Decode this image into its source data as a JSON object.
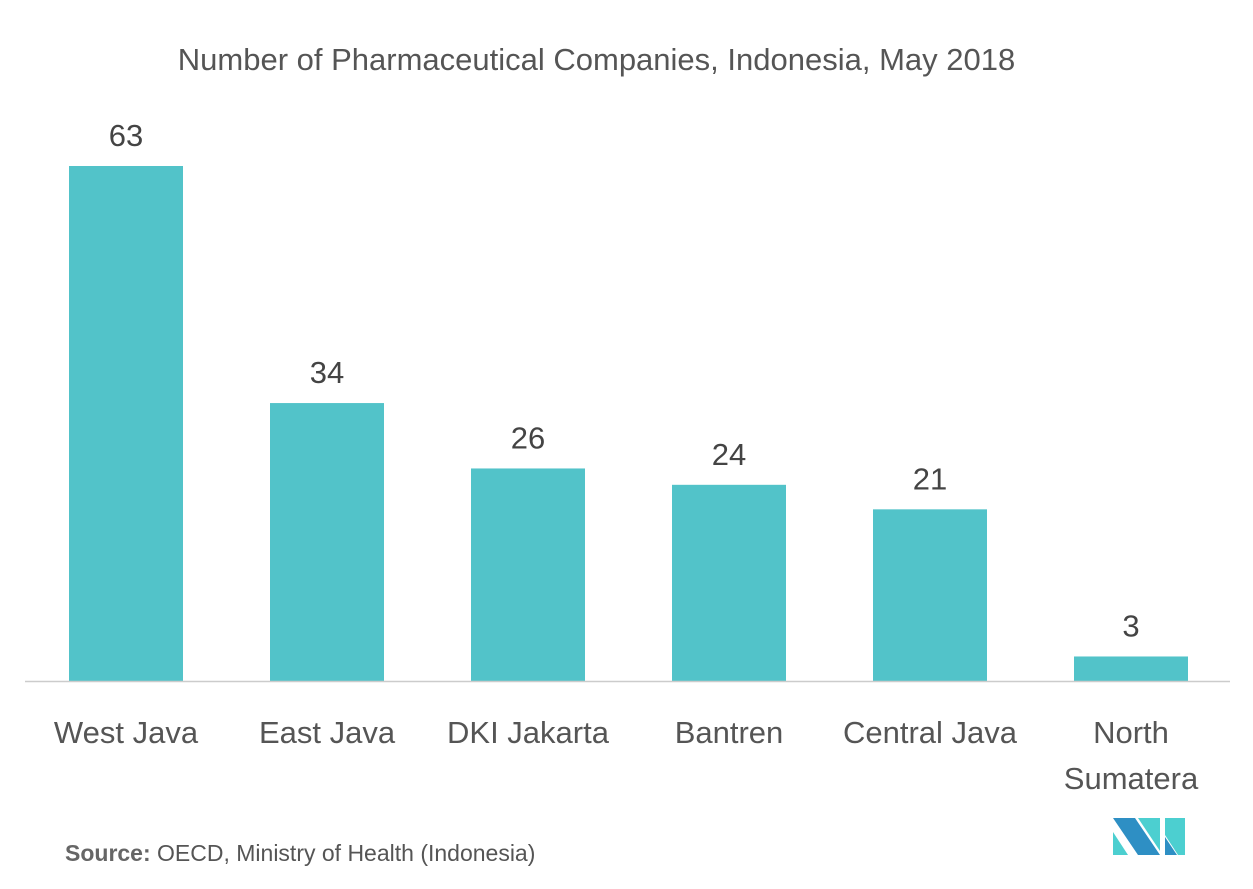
{
  "chart_data": {
    "type": "bar",
    "title": "Number of Pharmaceutical Companies, Indonesia, May 2018",
    "categories": [
      "West Java",
      "East Java",
      "DKI Jakarta",
      "Bantren",
      "Central Java",
      "North Sumatera"
    ],
    "values": [
      63,
      34,
      26,
      24,
      21,
      3
    ],
    "xlabel": "",
    "ylabel": "",
    "ylim": [
      0,
      63
    ],
    "grid": false,
    "bar_color": "#52c3c9"
  },
  "source": {
    "label": "Source:",
    "text": " OECD, Ministry of Health (Indonesia)"
  },
  "logo": {
    "colors": [
      "#2e8fc4",
      "#4ccfd0"
    ]
  }
}
